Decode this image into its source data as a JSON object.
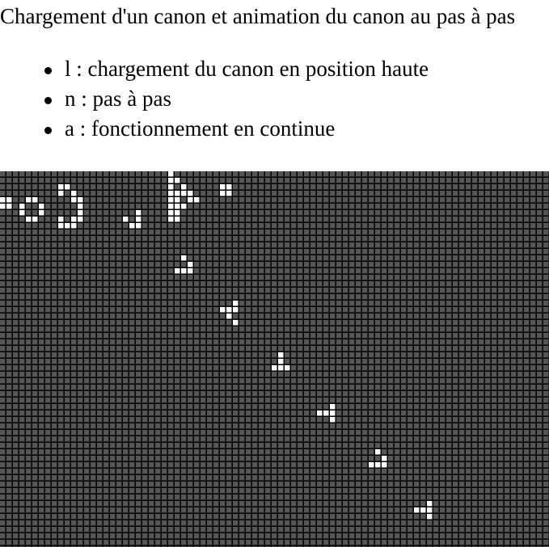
{
  "page": {
    "title": "Chargement d'un canon et animation du canon au pas à pas",
    "instructions": [
      "l : chargement du canon en position haute",
      "n : pas à pas",
      "a : fonctionnement en continue"
    ]
  },
  "grid": {
    "colors": {
      "dead_cell": "#555555",
      "live_cell": "#ffffff",
      "gridline": "#000000"
    },
    "live_cells": [
      [
        0,
        4
      ],
      [
        1,
        4
      ],
      [
        0,
        5
      ],
      [
        1,
        5
      ],
      [
        4,
        4
      ],
      [
        5,
        4
      ],
      [
        6,
        5
      ],
      [
        6,
        6
      ],
      [
        4,
        7
      ],
      [
        5,
        7
      ],
      [
        3,
        5
      ],
      [
        3,
        6
      ],
      [
        9,
        2
      ],
      [
        10,
        2
      ],
      [
        9,
        3
      ],
      [
        11,
        3
      ],
      [
        11,
        4
      ],
      [
        12,
        4
      ],
      [
        12,
        5
      ],
      [
        12,
        6
      ],
      [
        12,
        7
      ],
      [
        11,
        7
      ],
      [
        11,
        8
      ],
      [
        10,
        8
      ],
      [
        9,
        8
      ],
      [
        9,
        7
      ],
      [
        26,
        0
      ],
      [
        26,
        1
      ],
      [
        27,
        1
      ],
      [
        28,
        2
      ],
      [
        28,
        3
      ],
      [
        29,
        3
      ],
      [
        29,
        4
      ],
      [
        30,
        4
      ],
      [
        28,
        5
      ],
      [
        27,
        5
      ],
      [
        27,
        6
      ],
      [
        27,
        7
      ],
      [
        26,
        7
      ],
      [
        26,
        6
      ],
      [
        26,
        5
      ],
      [
        26,
        4
      ],
      [
        26,
        3
      ],
      [
        26,
        2
      ],
      [
        27,
        3
      ],
      [
        27,
        4
      ],
      [
        34,
        2
      ],
      [
        35,
        2
      ],
      [
        34,
        3
      ],
      [
        35,
        3
      ],
      [
        19,
        7
      ],
      [
        20,
        8
      ],
      [
        21,
        8
      ],
      [
        21,
        7
      ],
      [
        21,
        6
      ],
      [
        28,
        13
      ],
      [
        29,
        14
      ],
      [
        27,
        15
      ],
      [
        28,
        15
      ],
      [
        29,
        15
      ],
      [
        35,
        21
      ],
      [
        36,
        21
      ],
      [
        35,
        22
      ],
      [
        36,
        20
      ],
      [
        34,
        21
      ],
      [
        36,
        23
      ],
      [
        43,
        28
      ],
      [
        43,
        29
      ],
      [
        44,
        30
      ],
      [
        42,
        30
      ],
      [
        43,
        30
      ],
      [
        51,
        36
      ],
      [
        50,
        37
      ],
      [
        51,
        37
      ],
      [
        51,
        38
      ],
      [
        49,
        37
      ],
      [
        58,
        43
      ],
      [
        59,
        44
      ],
      [
        57,
        45
      ],
      [
        58,
        45
      ],
      [
        59,
        45
      ],
      [
        66,
        51
      ],
      [
        65,
        52
      ],
      [
        66,
        52
      ],
      [
        66,
        53
      ],
      [
        64,
        52
      ]
    ]
  }
}
